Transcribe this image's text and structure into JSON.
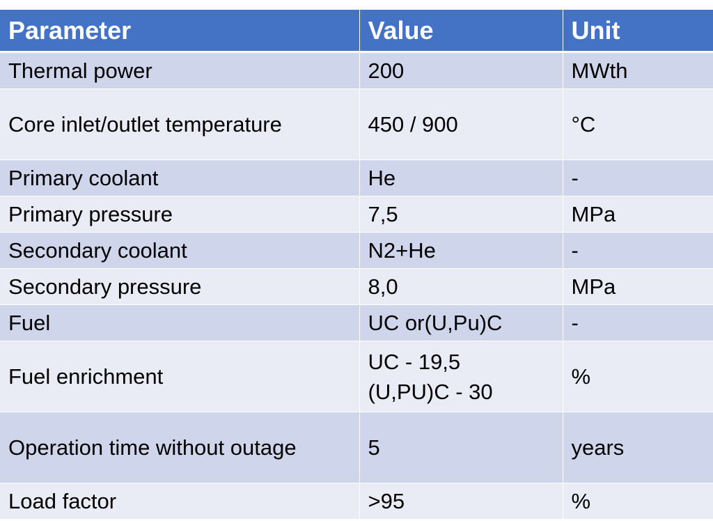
{
  "headers": {
    "parameter": "Parameter",
    "value": "Value",
    "unit": "Unit"
  },
  "rows": [
    {
      "parameter": "Thermal power",
      "value": "200",
      "unit": "MWth"
    },
    {
      "parameter": "Core inlet/outlet temperature",
      "value": "450 / 900",
      "unit": "°C"
    },
    {
      "parameter": "Primary coolant",
      "value": "He",
      "unit": "-"
    },
    {
      "parameter": "Primary pressure",
      "value": "7,5",
      "unit": "MPa"
    },
    {
      "parameter": "Secondary coolant",
      "value": "N2+He",
      "unit": "-"
    },
    {
      "parameter": "Secondary pressure",
      "value": "8,0",
      "unit": "MPa"
    },
    {
      "parameter": "Fuel",
      "value": "UC or(U,Pu)C",
      "unit": "-"
    },
    {
      "parameter": "Fuel enrichment",
      "value_lines": [
        "UC - 19,5",
        "(U,PU)C - 30"
      ],
      "unit": "%"
    },
    {
      "parameter": "Operation time without outage",
      "value": "5",
      "unit": "years"
    },
    {
      "parameter": "Load factor",
      "value": ">95",
      "unit": "%"
    }
  ],
  "colors": {
    "header_bg": "#4472c4",
    "row_odd_bg": "#cfd5ea",
    "row_even_bg": "#e9ebf5"
  }
}
